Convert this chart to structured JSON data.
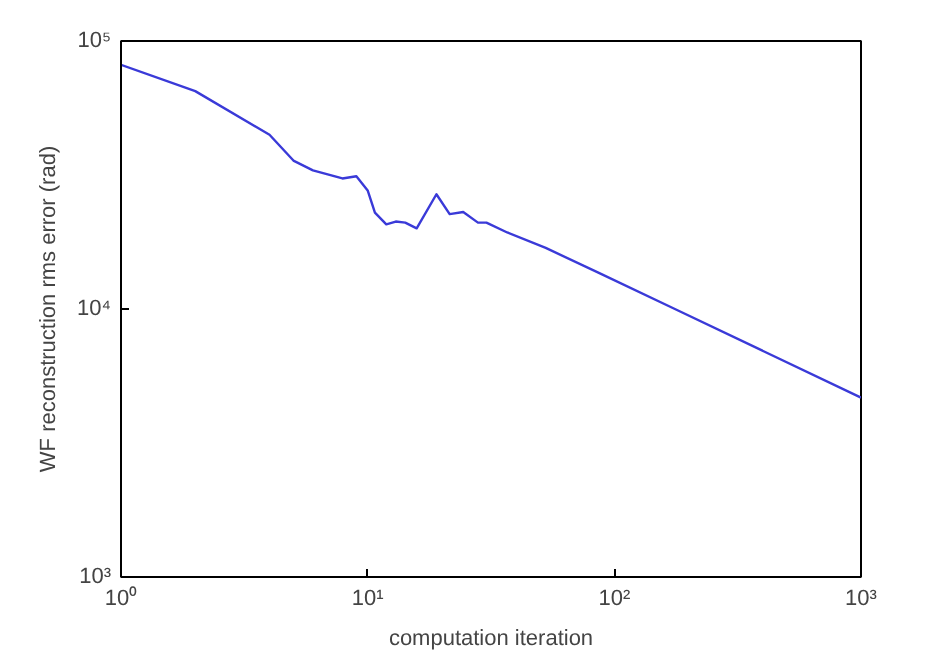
{
  "chart_data": {
    "type": "line",
    "xlabel": "computation iteration",
    "ylabel": "WF reconstruction rms error (rad)",
    "log": "xy",
    "grid": false,
    "marker": "none",
    "line_style": "solid",
    "xlim": [
      1,
      1000
    ],
    "ylim": [
      1000,
      100000
    ],
    "xticks": [
      {
        "value": 1,
        "label": "10⁰"
      },
      {
        "value": 10,
        "label": "10¹"
      },
      {
        "value": 100,
        "label": "10²"
      },
      {
        "value": 1000,
        "label": "10³"
      }
    ],
    "yticks": [
      {
        "value": 1000,
        "label": "10³"
      },
      {
        "value": 10000,
        "label": "10⁴"
      },
      {
        "value": 100000,
        "label": "10⁵"
      }
    ],
    "series": [
      {
        "color": "#3a3ad8",
        "x": [
          1,
          2,
          4,
          5,
          6,
          7.9,
          9,
          10,
          10.7,
          11.9,
          13,
          14.2,
          15.8,
          19,
          21.5,
          24.4,
          28,
          30.3,
          36.8,
          52.7,
          85.7,
          176,
          1000
        ],
        "values": [
          81500,
          65000,
          44700,
          35800,
          32900,
          30700,
          31300,
          27700,
          22900,
          20700,
          21200,
          21000,
          20000,
          26800,
          22600,
          23000,
          21000,
          21000,
          19300,
          16900,
          13700,
          10000,
          4670
        ]
      }
    ]
  }
}
